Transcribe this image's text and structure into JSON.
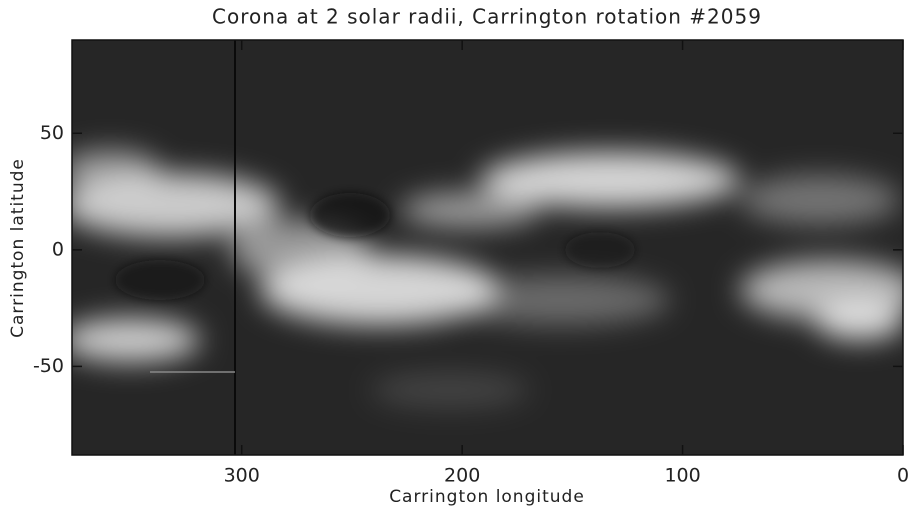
{
  "chart_data": {
    "type": "image",
    "title": "Corona at 2 solar radii, Carrington rotation #2059",
    "xlabel": "Carrington longitude",
    "ylabel": "Carrington latitude",
    "xlim": [
      377,
      0
    ],
    "xticks": [
      300,
      200,
      100,
      0
    ],
    "ylim": [
      -88,
      90
    ],
    "yticks": [
      -50,
      0,
      50
    ]
  }
}
